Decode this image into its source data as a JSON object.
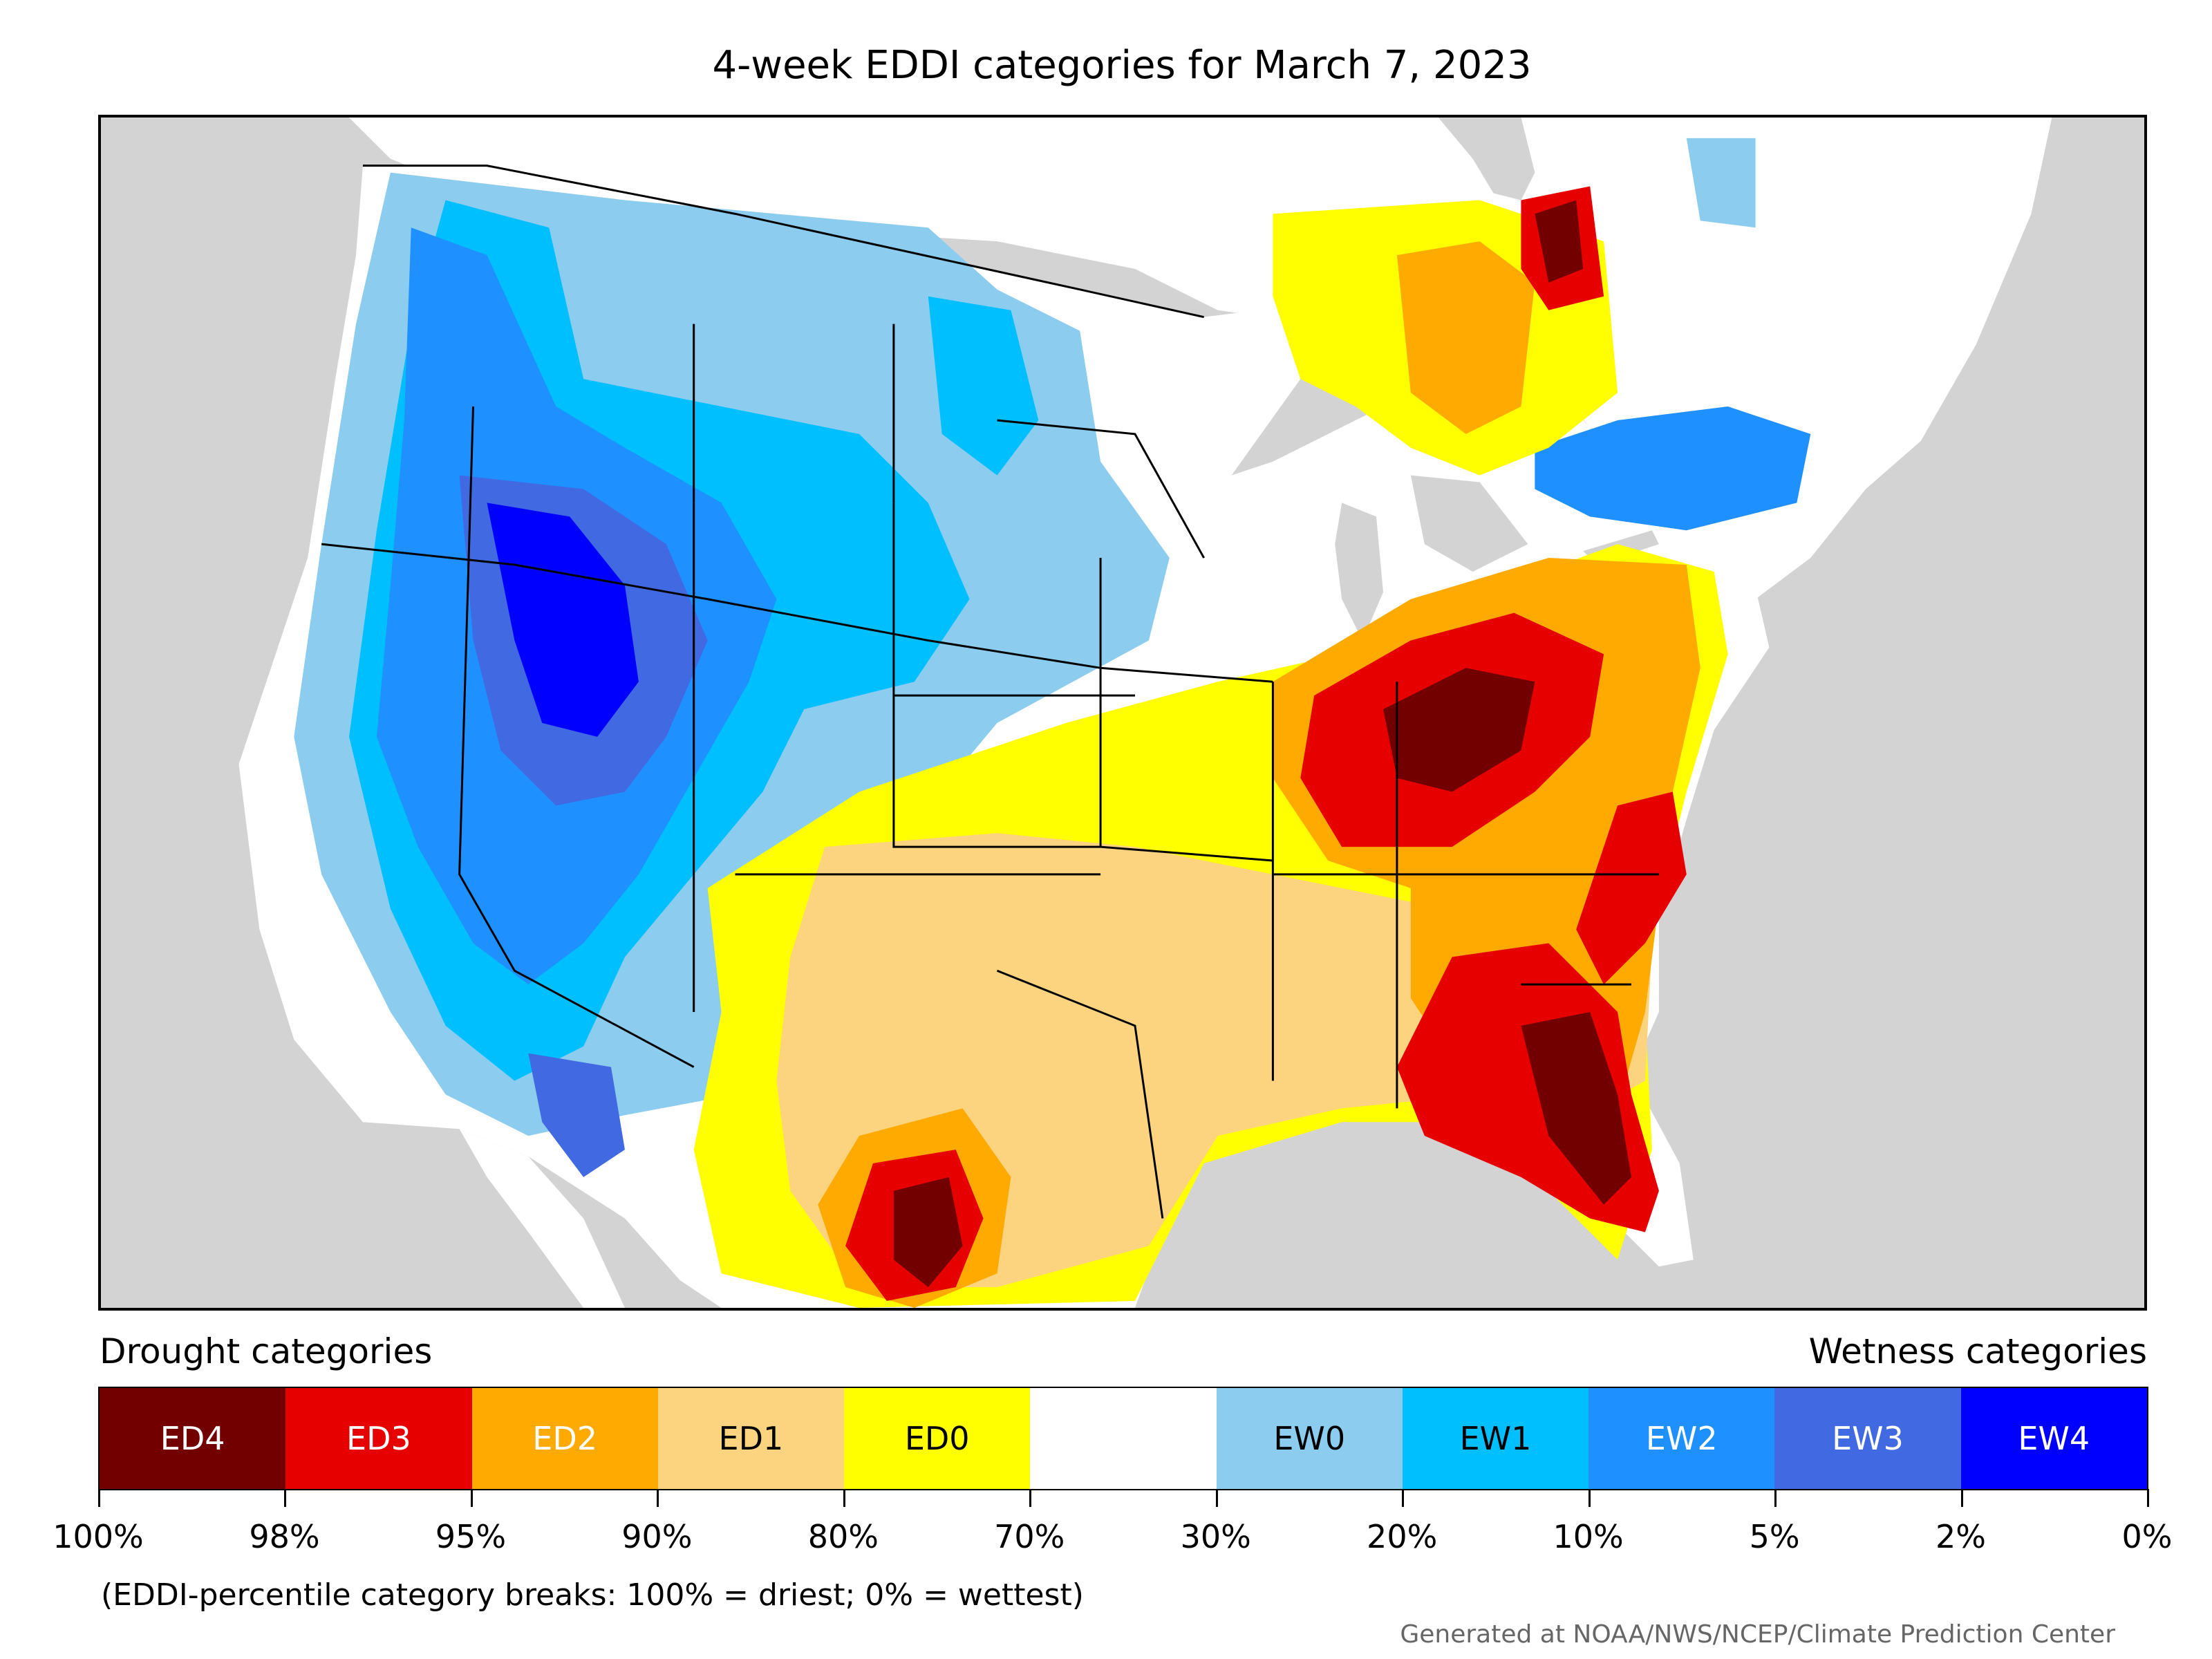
{
  "title": "4-week EDDI categories for March 7, 2023",
  "legend": {
    "drought_heading": "Drought categories",
    "wetness_heading": "Wetness categories",
    "categories": [
      {
        "label": "ED4",
        "color": "#730000",
        "text_color": "#ffffff"
      },
      {
        "label": "ED3",
        "color": "#e60000",
        "text_color": "#ffffff"
      },
      {
        "label": "ED2",
        "color": "#ffaa00",
        "text_color": "#ffffff"
      },
      {
        "label": "ED1",
        "color": "#fcd37f",
        "text_color": "#000000"
      },
      {
        "label": "ED0",
        "color": "#ffff00",
        "text_color": "#000000"
      },
      {
        "label": "",
        "color": "#ffffff",
        "text_color": "#000000"
      },
      {
        "label": "EW0",
        "color": "#8ccdef",
        "text_color": "#000000"
      },
      {
        "label": "EW1",
        "color": "#00bfff",
        "text_color": "#000000"
      },
      {
        "label": "EW2",
        "color": "#1e90ff",
        "text_color": "#ffffff"
      },
      {
        "label": "EW3",
        "color": "#4169e1",
        "text_color": "#ffffff"
      },
      {
        "label": "EW4",
        "color": "#0000ff",
        "text_color": "#ffffff"
      }
    ],
    "ticks": [
      "100%",
      "98%",
      "95%",
      "90%",
      "80%",
      "70%",
      "30%",
      "20%",
      "10%",
      "5%",
      "2%",
      "0%"
    ]
  },
  "note": "(EDDI-percentile category breaks: 100% = driest; 0% = wettest)",
  "credit": "Generated at NOAA/NWS/NCEP/Climate Prediction Center",
  "map": {
    "ocean_color": "#d3d3d3",
    "land_color": "#ffffff",
    "border_color": "#000000"
  }
}
